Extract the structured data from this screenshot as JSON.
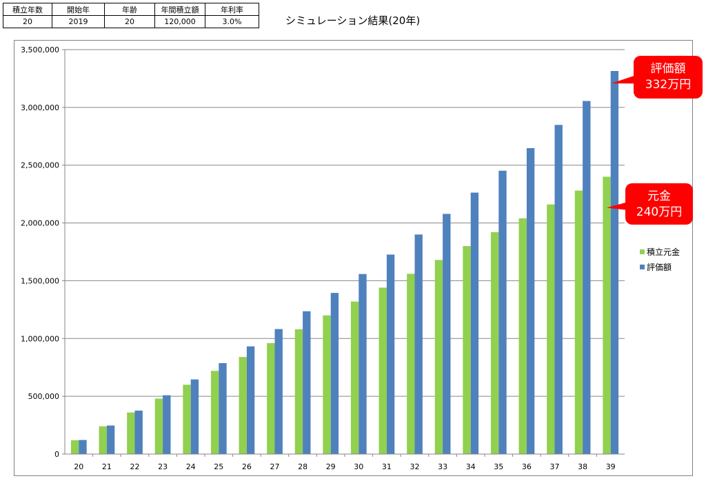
{
  "params": {
    "headers": [
      "積立年数",
      "開始年",
      "年齢",
      "年間積立額",
      "年利率"
    ],
    "values": [
      "20",
      "2019",
      "20",
      "120,000",
      "3.0%"
    ]
  },
  "sheet_title": "シミュレーション結果(20年)",
  "colors": {
    "principal": "#92d050",
    "valuation": "#4f81bd",
    "callout": "#ff0000",
    "gridline": "#868686"
  },
  "callouts": [
    {
      "line1": "評価額",
      "line2": "332万円",
      "points_to": "評価額"
    },
    {
      "line1": "元金",
      "line2": "240万円",
      "points_to": "積立元金"
    }
  ],
  "chart_data": {
    "type": "bar",
    "categories": [
      "20",
      "21",
      "22",
      "23",
      "24",
      "25",
      "26",
      "27",
      "28",
      "29",
      "30",
      "31",
      "32",
      "33",
      "34",
      "35",
      "36",
      "37",
      "38",
      "39"
    ],
    "series": [
      {
        "name": "積立元金",
        "values": [
          120000,
          240000,
          360000,
          480000,
          600000,
          720000,
          840000,
          960000,
          1080000,
          1200000,
          1320000,
          1440000,
          1560000,
          1680000,
          1800000,
          1920000,
          2040000,
          2160000,
          2280000,
          2400000
        ]
      },
      {
        "name": "評価額",
        "values": [
          121800,
          247100,
          376100,
          509000,
          645900,
          786900,
          932100,
          1081700,
          1235800,
          1394500,
          1558000,
          1726400,
          1899800,
          2078500,
          2262500,
          2452100,
          2647300,
          2848400,
          3055500,
          3315000
        ]
      }
    ],
    "title": "",
    "xlabel": "",
    "ylabel": "",
    "ylim": [
      0,
      3500000
    ],
    "ytick_step": 500000,
    "grid": true,
    "legend_position": "right"
  }
}
